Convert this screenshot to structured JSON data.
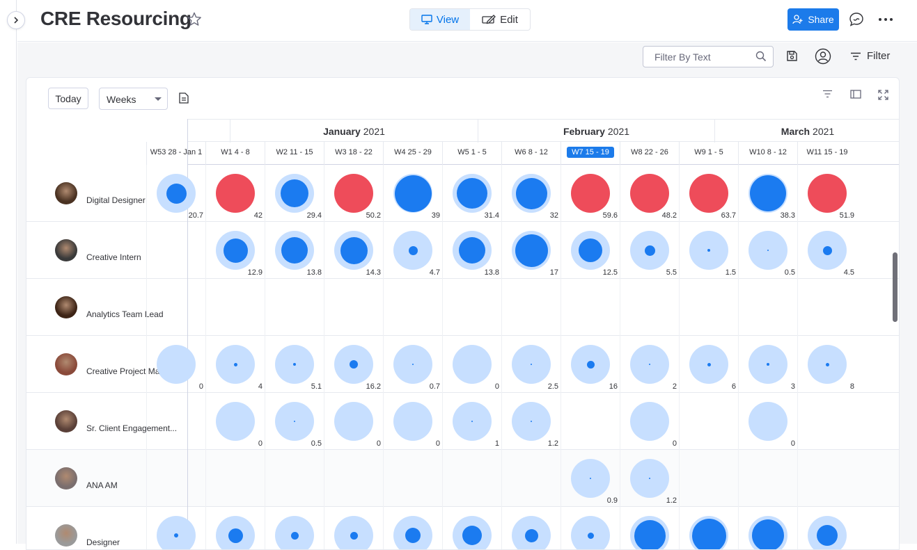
{
  "header": {
    "title": "CRE Resourcing",
    "view_label": "View",
    "edit_label": "Edit",
    "share_label": "Share"
  },
  "toolbar": {
    "filter_placeholder": "Filter By Text",
    "filter_label": "Filter"
  },
  "widget": {
    "today_label": "Today",
    "scale_value": "Weeks",
    "months": [
      {
        "name": "January",
        "year": "2021"
      },
      {
        "name": "February",
        "year": "2021"
      },
      {
        "name": "March",
        "year": "2021"
      }
    ],
    "weeks": [
      {
        "label": "W53   28 - Jan 1"
      },
      {
        "label": "W1   4 - 8"
      },
      {
        "label": "W2   11 - 15"
      },
      {
        "label": "W3   18 - 22"
      },
      {
        "label": "W4   25 - 29"
      },
      {
        "label": "W5   1 - 5"
      },
      {
        "label": "W6   8 - 12"
      },
      {
        "label": "W7   15 - 19",
        "current": true
      },
      {
        "label": "W8   22 - 26"
      },
      {
        "label": "W9   1 - 5"
      },
      {
        "label": "W10   8 - 12"
      },
      {
        "label": "W11   15 - 19"
      }
    ],
    "rows": [
      {
        "role": "Digital Designer",
        "avatar_color": "#4a3222",
        "cells": [
          {
            "v": "20.7",
            "load": 0.55,
            "over": false
          },
          {
            "v": "42",
            "load": 1.0,
            "over": true
          },
          {
            "v": "29.4",
            "load": 0.76,
            "over": false
          },
          {
            "v": "50.2",
            "load": 1.0,
            "over": true
          },
          {
            "v": "39",
            "load": 1.0,
            "over": false
          },
          {
            "v": "31.4",
            "load": 0.82,
            "over": false
          },
          {
            "v": "32",
            "load": 0.84,
            "over": false
          },
          {
            "v": "59.6",
            "load": 1.0,
            "over": true
          },
          {
            "v": "48.2",
            "load": 1.0,
            "over": true
          },
          {
            "v": "63.7",
            "load": 1.0,
            "over": true
          },
          {
            "v": "38.3",
            "load": 0.98,
            "over": false
          },
          {
            "v": "51.9",
            "load": 1.0,
            "over": true
          }
        ]
      },
      {
        "role": "Creative Intern",
        "avatar_color": "#3a3a3a",
        "cells": [
          null,
          {
            "v": "12.9",
            "load": 0.66,
            "over": false
          },
          {
            "v": "13.8",
            "load": 0.72,
            "over": false
          },
          {
            "v": "14.3",
            "load": 0.74,
            "over": false
          },
          {
            "v": "4.7",
            "load": 0.25,
            "over": false
          },
          {
            "v": "13.8",
            "load": 0.72,
            "over": false
          },
          {
            "v": "17",
            "load": 0.88,
            "over": false
          },
          {
            "v": "12.5",
            "load": 0.64,
            "over": false
          },
          {
            "v": "5.5",
            "load": 0.28,
            "over": false
          },
          {
            "v": "1.5",
            "load": 0.08,
            "over": false
          },
          {
            "v": "0.5",
            "load": 0.02,
            "over": false
          },
          {
            "v": "4.5",
            "load": 0.24,
            "over": false
          }
        ]
      },
      {
        "role": "Analytics Team Lead",
        "avatar_color": "#3d2416",
        "cells": [
          null,
          null,
          null,
          null,
          null,
          null,
          null,
          null,
          null,
          null,
          null,
          null
        ]
      },
      {
        "role": "Creative Project Mana...",
        "avatar_color": "#8a4a3a",
        "cells": [
          {
            "v": "0",
            "load": 0,
            "over": false
          },
          {
            "v": "4",
            "load": 0.1,
            "over": false
          },
          {
            "v": "5.1",
            "load": 0.08,
            "over": false
          },
          {
            "v": "16.2",
            "load": 0.22,
            "over": false
          },
          {
            "v": "0.7",
            "load": 0.02,
            "over": false
          },
          {
            "v": "0",
            "load": 0,
            "over": false
          },
          {
            "v": "2.5",
            "load": 0.03,
            "over": false
          },
          {
            "v": "16",
            "load": 0.2,
            "over": false
          },
          {
            "v": "2",
            "load": 0.02,
            "over": false
          },
          {
            "v": "6",
            "load": 0.1,
            "over": false
          },
          {
            "v": "3",
            "load": 0.07,
            "over": false
          },
          {
            "v": "8",
            "load": 0.1,
            "over": false
          }
        ]
      },
      {
        "role": "Sr. Client Engagement...",
        "avatar_color": "#5a4038",
        "cells": [
          null,
          {
            "v": "0",
            "load": 0,
            "over": false
          },
          {
            "v": "0.5",
            "load": 0.02,
            "over": false
          },
          {
            "v": "0",
            "load": 0,
            "over": false
          },
          {
            "v": "0",
            "load": 0,
            "over": false
          },
          {
            "v": "1",
            "load": 0.02,
            "over": false
          },
          {
            "v": "1.2",
            "load": 0.02,
            "over": false
          },
          null,
          {
            "v": "0",
            "load": 0,
            "over": false
          },
          null,
          {
            "v": "0",
            "load": 0,
            "over": false
          },
          null
        ]
      },
      {
        "role": "ANA AM",
        "avatar_color": "#7a6e6e",
        "cells": [
          null,
          null,
          null,
          null,
          null,
          null,
          null,
          {
            "v": "0.9",
            "load": 0.02,
            "over": false
          },
          {
            "v": "1.2",
            "load": 0.02,
            "over": false
          },
          null,
          null,
          null
        ]
      },
      {
        "role": "Designer",
        "avatar_color": "#9a9a9a",
        "cells": [
          {
            "v": "",
            "load": 0.12,
            "over": false
          },
          {
            "v": "",
            "load": 0.4,
            "over": false
          },
          {
            "v": "",
            "load": 0.2,
            "over": false
          },
          {
            "v": "",
            "load": 0.2,
            "over": false
          },
          {
            "v": "",
            "load": 0.42,
            "over": false
          },
          {
            "v": "",
            "load": 0.52,
            "over": false
          },
          {
            "v": "",
            "load": 0.36,
            "over": false
          },
          {
            "v": "",
            "load": 0.16,
            "over": false
          },
          {
            "v": "",
            "load": 0.84,
            "over": false
          },
          {
            "v": "",
            "load": 0.92,
            "over": false
          },
          {
            "v": "",
            "load": 0.86,
            "over": false
          },
          {
            "v": "",
            "load": 0.56,
            "over": false
          }
        ]
      }
    ]
  }
}
